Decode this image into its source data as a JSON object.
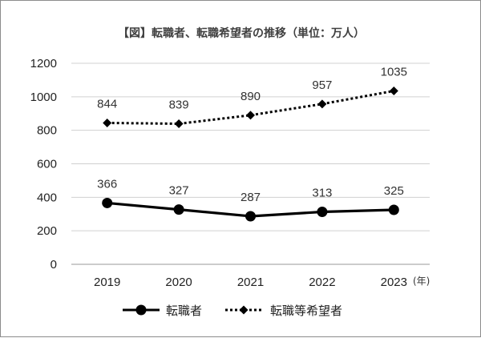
{
  "chart_data": {
    "type": "line",
    "title": "【図】転職者、転職希望者の推移（単位：万人）",
    "xlabel": "",
    "ylabel": "",
    "x_unit": "(年)",
    "categories": [
      "2019",
      "2020",
      "2021",
      "2022",
      "2023"
    ],
    "ylim": [
      0,
      1200
    ],
    "yticks": [
      0,
      200,
      400,
      600,
      800,
      1000,
      1200
    ],
    "grid": "horizontal",
    "legend_position": "bottom",
    "series": [
      {
        "name": "転職者",
        "values": [
          366,
          327,
          287,
          313,
          325
        ],
        "style": "solid",
        "marker": "circle",
        "color": "#000000"
      },
      {
        "name": "転職等希望者",
        "values": [
          844,
          839,
          890,
          957,
          1035
        ],
        "style": "dotted",
        "marker": "diamond",
        "color": "#000000"
      }
    ]
  }
}
